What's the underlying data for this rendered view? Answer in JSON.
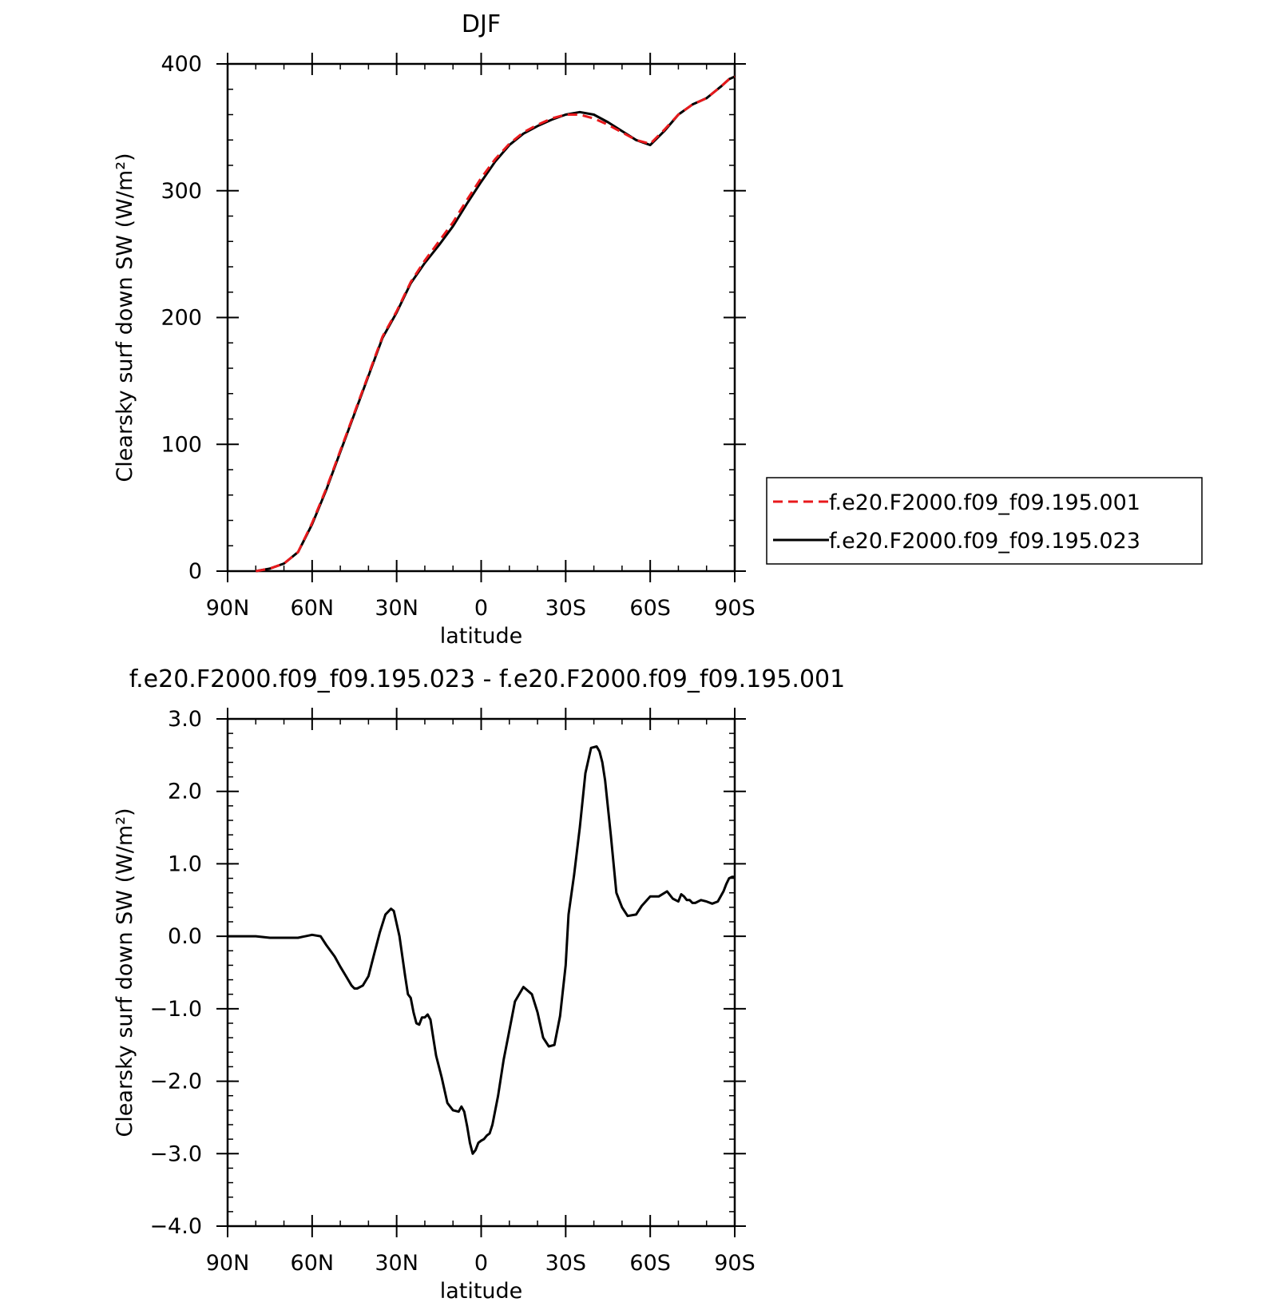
{
  "chart_data": [
    {
      "type": "line",
      "title": "DJF",
      "xlabel": "latitude",
      "ylabel": "Clearsky surf down SW (W/m²)",
      "xlim": [
        90,
        -90
      ],
      "ylim": [
        0,
        400
      ],
      "x_ticks": [
        {
          "value": 90,
          "label": "90N"
        },
        {
          "value": 60,
          "label": "60N"
        },
        {
          "value": 30,
          "label": "30N"
        },
        {
          "value": 0,
          "label": "0"
        },
        {
          "value": -30,
          "label": "30S"
        },
        {
          "value": -60,
          "label": "60S"
        },
        {
          "value": -90,
          "label": "90S"
        }
      ],
      "y_ticks": [
        {
          "value": 0,
          "label": "0"
        },
        {
          "value": 100,
          "label": "100"
        },
        {
          "value": 200,
          "label": "200"
        },
        {
          "value": 300,
          "label": "300"
        },
        {
          "value": 400,
          "label": "400"
        }
      ],
      "legend": "right",
      "series": [
        {
          "name": "f.e20.F2000.f09_f09.195.001",
          "color": "#e8191c",
          "dash": "dashed",
          "x": [
            80,
            75,
            70,
            65,
            60,
            55,
            50,
            45,
            40,
            35,
            30,
            25,
            20,
            15,
            10,
            5,
            0,
            -5,
            -10,
            -15,
            -20,
            -25,
            -30,
            -35,
            -40,
            -45,
            -50,
            -55,
            -60,
            -65,
            -70,
            -75,
            -80,
            -85,
            -88,
            -90
          ],
          "y": [
            0,
            2,
            6,
            15,
            38,
            65,
            95,
            125,
            155,
            185,
            205,
            228,
            245,
            260,
            275,
            293,
            310,
            325,
            337,
            346,
            352,
            357,
            360,
            360,
            357,
            352,
            346,
            340,
            337,
            348,
            360,
            368,
            373,
            382,
            388,
            390
          ]
        },
        {
          "name": "f.e20.F2000.f09_f09.195.023",
          "color": "#000000",
          "dash": "solid",
          "x": [
            80,
            75,
            70,
            65,
            60,
            55,
            50,
            45,
            40,
            35,
            30,
            25,
            20,
            15,
            10,
            5,
            0,
            -5,
            -10,
            -15,
            -20,
            -25,
            -30,
            -35,
            -40,
            -45,
            -50,
            -55,
            -60,
            -65,
            -70,
            -75,
            -80,
            -85,
            -88,
            -90
          ],
          "y": [
            0,
            2,
            6,
            15,
            37,
            64,
            94,
            124,
            154,
            184,
            204,
            227,
            243,
            257,
            272,
            290,
            307,
            323,
            336,
            345,
            351,
            356,
            360,
            362,
            360,
            354,
            347,
            340,
            336,
            347,
            360,
            368,
            373,
            382,
            388,
            390
          ]
        }
      ]
    },
    {
      "type": "line",
      "title": "f.e20.F2000.f09_f09.195.023 - f.e20.F2000.f09_f09.195.001",
      "xlabel": "latitude",
      "ylabel": "Clearsky surf down SW (W/m²)",
      "xlim": [
        90,
        -90
      ],
      "ylim": [
        -4.0,
        3.0
      ],
      "x_ticks": [
        {
          "value": 90,
          "label": "90N"
        },
        {
          "value": 60,
          "label": "60N"
        },
        {
          "value": 30,
          "label": "30N"
        },
        {
          "value": 0,
          "label": "0"
        },
        {
          "value": -30,
          "label": "30S"
        },
        {
          "value": -60,
          "label": "60S"
        },
        {
          "value": -90,
          "label": "90S"
        }
      ],
      "y_ticks": [
        {
          "value": 3.0,
          "label": "3.0"
        },
        {
          "value": 2.0,
          "label": "2.0"
        },
        {
          "value": 1.0,
          "label": "1.0"
        },
        {
          "value": 0.0,
          "label": "0.0"
        },
        {
          "value": -1.0,
          "label": "−1.0"
        },
        {
          "value": -2.0,
          "label": "−2.0"
        },
        {
          "value": -3.0,
          "label": "−3.0"
        },
        {
          "value": -4.0,
          "label": "−4.0"
        }
      ],
      "series": [
        {
          "color": "#000000",
          "dash": "solid",
          "x": [
            90,
            80,
            75,
            70,
            65,
            60,
            57,
            55,
            52,
            50,
            48,
            46,
            45,
            44,
            42,
            40,
            38,
            36,
            34,
            32,
            31,
            29,
            27,
            26,
            25,
            24,
            23,
            22,
            21,
            20,
            19,
            18,
            17,
            16,
            14,
            12,
            10,
            8,
            7,
            6,
            5,
            4,
            3,
            2,
            1,
            0,
            -1,
            -2,
            -3,
            -4,
            -6,
            -8,
            -10,
            -12,
            -15,
            -18,
            -20,
            -22,
            -24,
            -26,
            -28,
            -30,
            -31,
            -33,
            -35,
            -37,
            -39,
            -41,
            -42,
            -43,
            -44,
            -46,
            -48,
            -50,
            -52,
            -55,
            -57,
            -60,
            -63,
            -66,
            -68,
            -69,
            -70,
            -71,
            -72,
            -73,
            -74,
            -75,
            -76,
            -78,
            -80,
            -82,
            -84,
            -86,
            -87,
            -88,
            -89,
            -90
          ],
          "y": [
            0,
            0,
            -0.02,
            -0.02,
            -0.02,
            0.02,
            0.0,
            -0.12,
            -0.28,
            -0.42,
            -0.55,
            -0.68,
            -0.72,
            -0.72,
            -0.68,
            -0.55,
            -0.25,
            0.05,
            0.3,
            0.38,
            0.35,
            0.0,
            -0.55,
            -0.8,
            -0.85,
            -1.05,
            -1.2,
            -1.22,
            -1.12,
            -1.12,
            -1.08,
            -1.15,
            -1.4,
            -1.65,
            -1.95,
            -2.3,
            -2.4,
            -2.42,
            -2.35,
            -2.42,
            -2.62,
            -2.85,
            -3.0,
            -2.95,
            -2.85,
            -2.82,
            -2.8,
            -2.75,
            -2.72,
            -2.6,
            -2.2,
            -1.7,
            -1.3,
            -0.9,
            -0.7,
            -0.8,
            -1.05,
            -1.4,
            -1.52,
            -1.5,
            -1.1,
            -0.4,
            0.3,
            0.85,
            1.5,
            2.25,
            2.6,
            2.62,
            2.55,
            2.4,
            2.15,
            1.4,
            0.6,
            0.4,
            0.28,
            0.3,
            0.42,
            0.55,
            0.55,
            0.62,
            0.52,
            0.5,
            0.48,
            0.58,
            0.55,
            0.5,
            0.5,
            0.46,
            0.46,
            0.5,
            0.48,
            0.45,
            0.48,
            0.62,
            0.72,
            0.8,
            0.82,
            0.82
          ]
        }
      ]
    }
  ]
}
